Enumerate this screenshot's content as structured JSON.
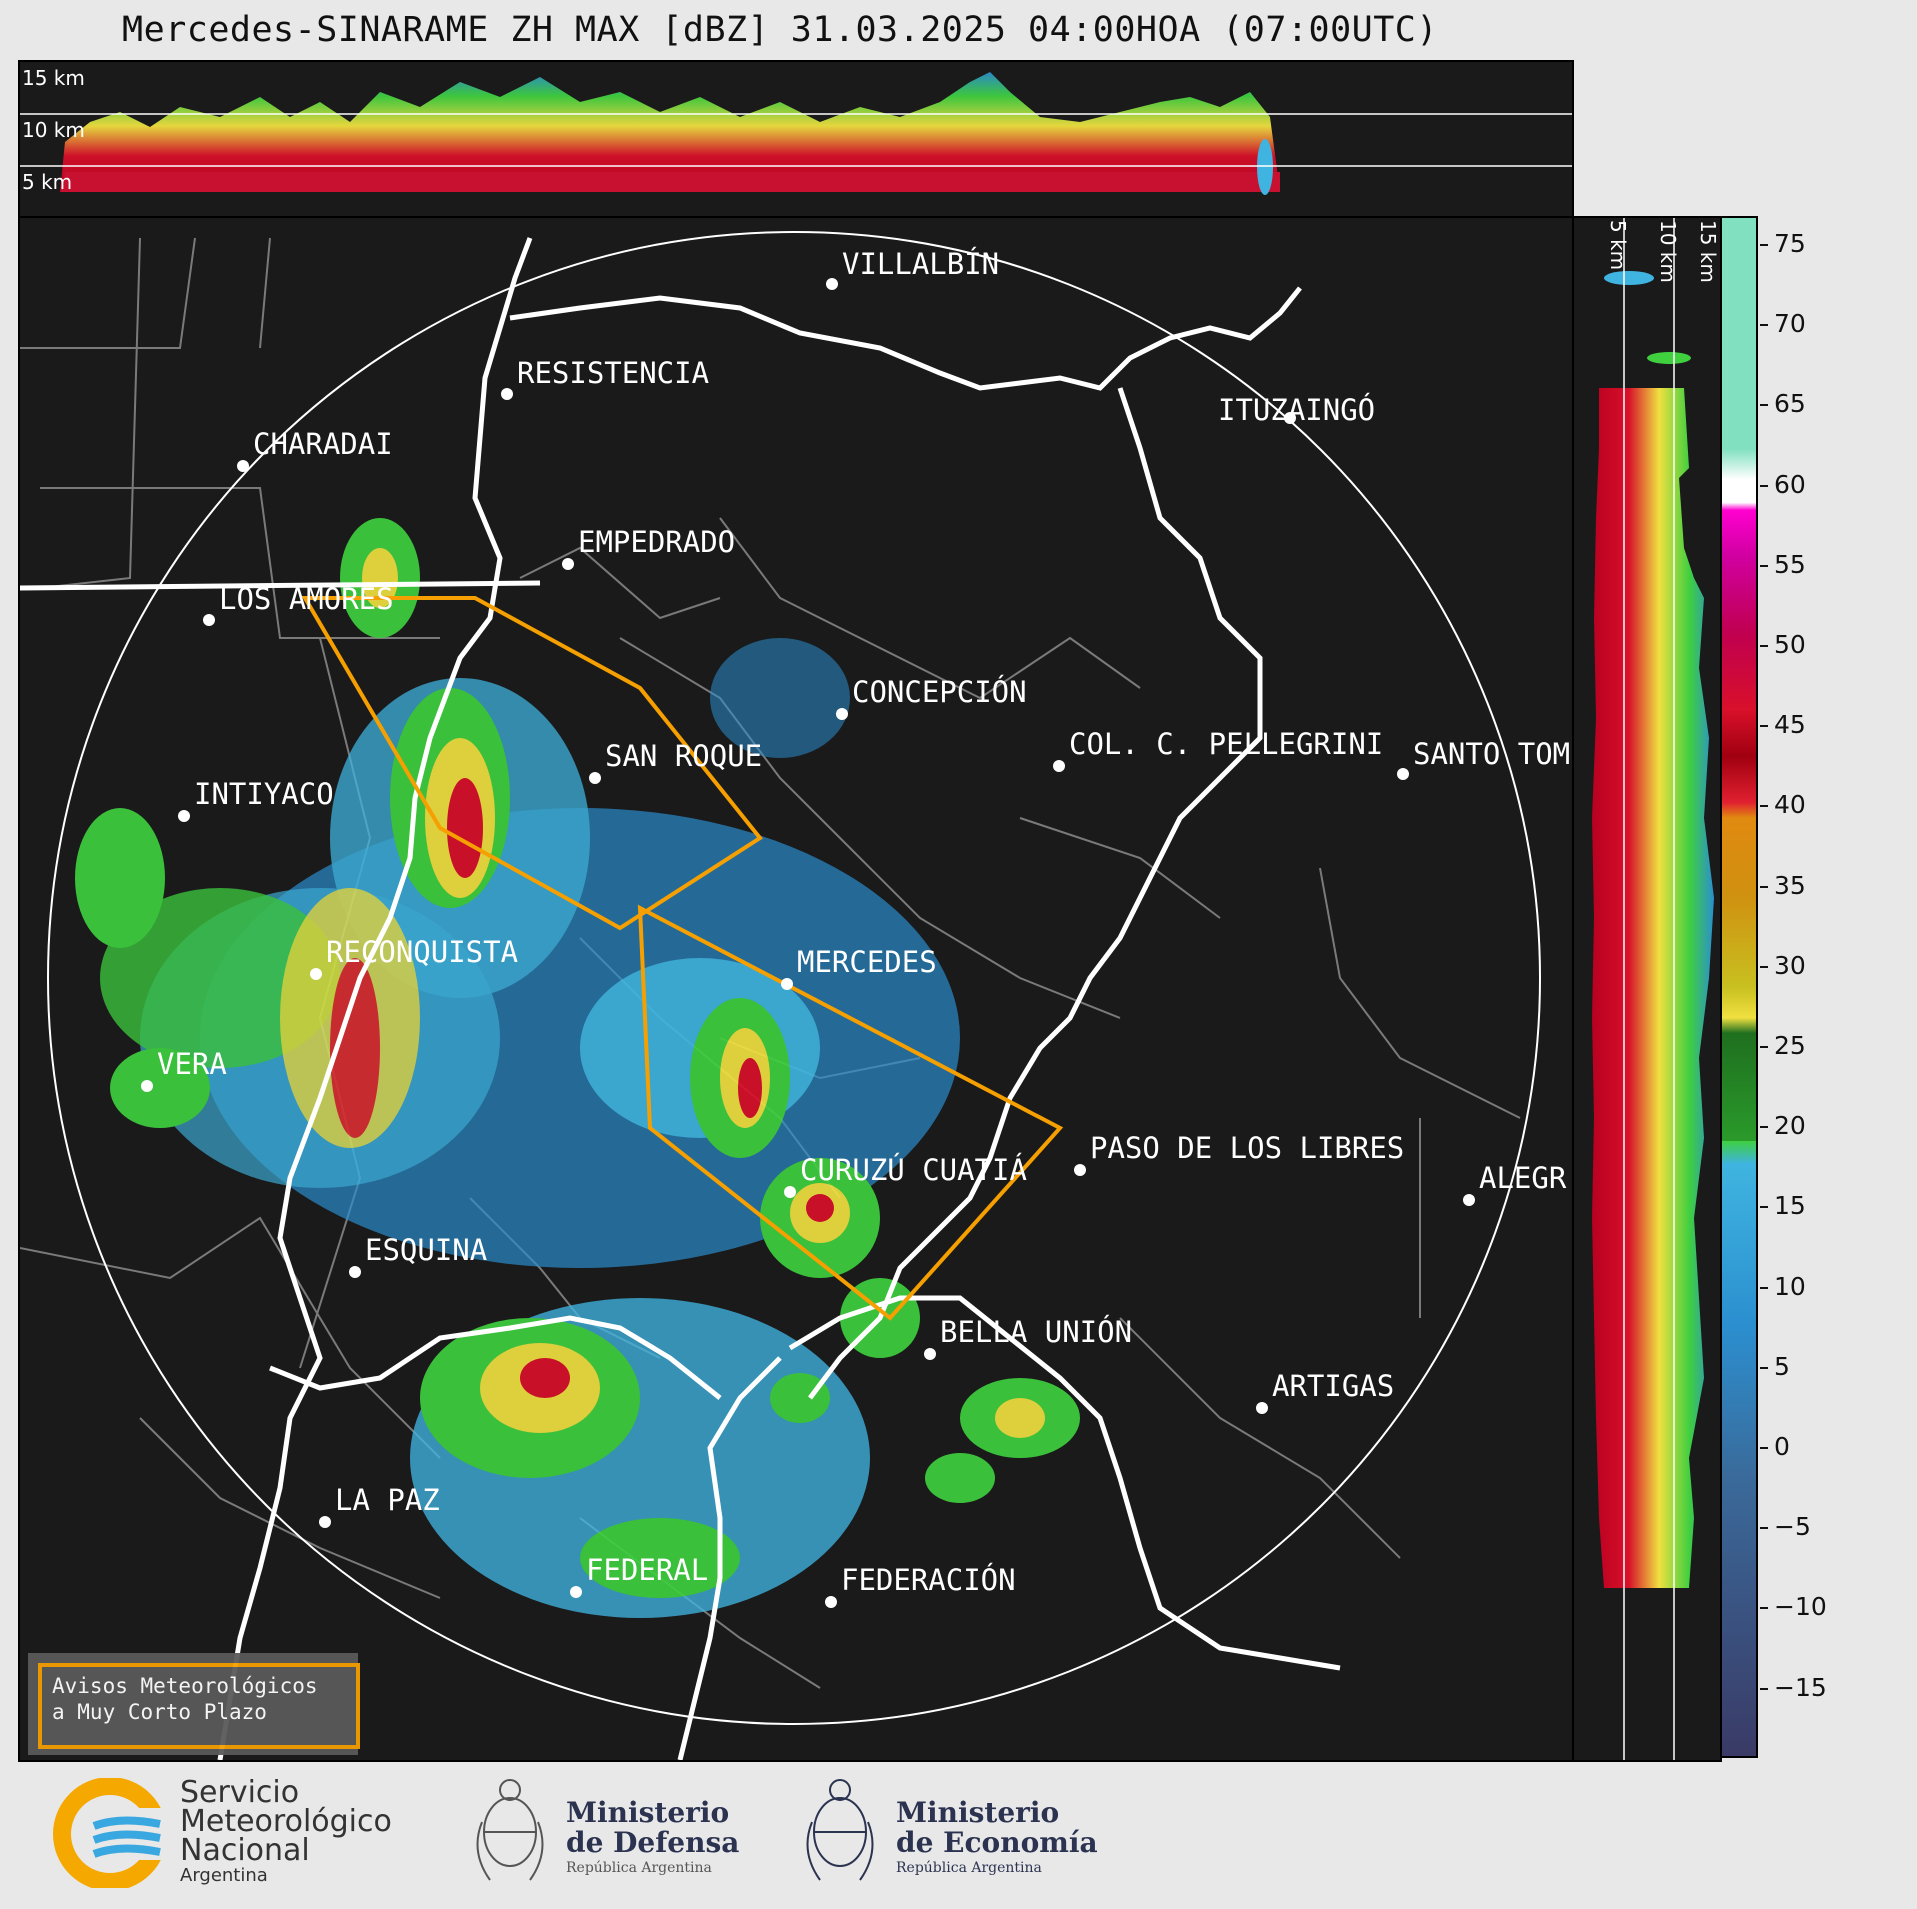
{
  "title": "Mercedes-SINARAME ZH MAX [dBZ] 31.03.2025 04:00HOA (07:00UTC)",
  "top_panel": {
    "altitude_labels": [
      "15 km",
      "10 km",
      "5 km"
    ]
  },
  "side_panel": {
    "altitude_labels": [
      "5 km",
      "10 km",
      "15 km"
    ]
  },
  "colorbar": {
    "unit": "dBZ",
    "ticks": [
      "75",
      "70",
      "65",
      "60",
      "55",
      "50",
      "45",
      "40",
      "35",
      "30",
      "25",
      "20",
      "15",
      "10",
      "5",
      "0",
      "−5",
      "−10",
      "−15"
    ],
    "colors": {
      "purple_low": "#3a3a66",
      "blue": "#2b8fcf",
      "cyan": "#3fb4e0",
      "green": "#3fcf3f",
      "dark_green": "#1f6f1f",
      "yellow": "#f0e040",
      "orange": "#e08a10",
      "red": "#d8102a",
      "magenta": "#ff00d0",
      "white": "#ffffff",
      "mint": "#80e0c0"
    }
  },
  "cities": [
    {
      "name": "VILLALBÍN"
    },
    {
      "name": "RESISTENCIA"
    },
    {
      "name": "CHARADAI"
    },
    {
      "name": "ITUZAINGÓ"
    },
    {
      "name": "EMPEDRADO"
    },
    {
      "name": "LOS AMORES"
    },
    {
      "name": "CONCEPCIÓN"
    },
    {
      "name": "COL. C. PELLEGRINI"
    },
    {
      "name": "SANTO TOM"
    },
    {
      "name": "SAN ROQUE"
    },
    {
      "name": "INTIYACO"
    },
    {
      "name": "MERCEDES"
    },
    {
      "name": "RECONQUISTA"
    },
    {
      "name": "VERA"
    },
    {
      "name": "PASO DE LOS LIBRES"
    },
    {
      "name": "CURUZÚ CUATIÁ"
    },
    {
      "name": "ALEGR"
    },
    {
      "name": "ESQUINA"
    },
    {
      "name": "BELLA UNIÓN"
    },
    {
      "name": "ARTIGAS"
    },
    {
      "name": "LA PAZ"
    },
    {
      "name": "FEDERAL"
    },
    {
      "name": "FEDERACIÓN"
    }
  ],
  "warning_box": {
    "line1": "Avisos Meteorológicos",
    "line2": "a Muy Corto Plazo",
    "border_color": "#f5a000"
  },
  "footer": {
    "smn": {
      "line1": "Servicio",
      "line2": "Meteorológico",
      "line3": "Nacional",
      "line4": "Argentina"
    },
    "defensa": {
      "line1": "Ministerio",
      "line2": "de Defensa",
      "line3": "República Argentina"
    },
    "economia": {
      "line1": "Ministerio",
      "line2": "de Economía",
      "line3": "República Argentina"
    }
  }
}
